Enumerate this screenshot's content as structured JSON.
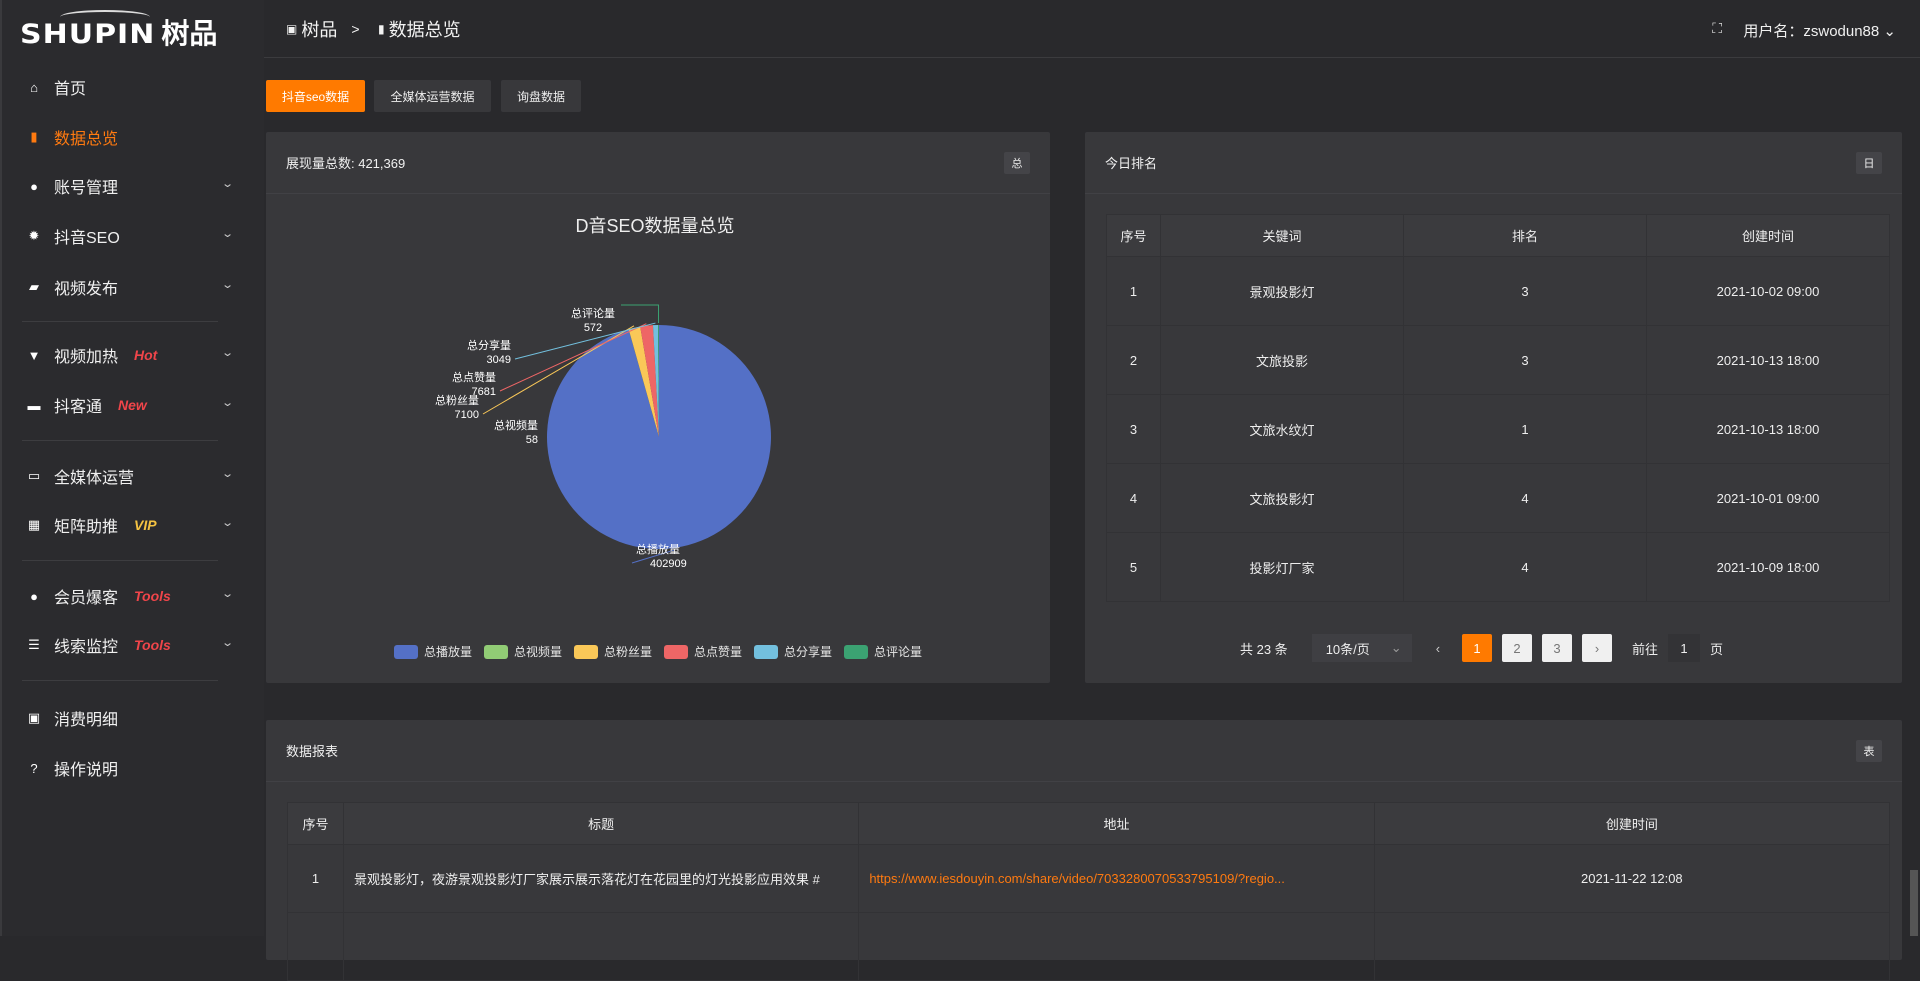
{
  "brand": {
    "logo_en": "SHUPIN",
    "logo_cn": "树品"
  },
  "sidebar": {
    "items": [
      {
        "label": "首页",
        "icon": "home-icon",
        "glyph": "⌂"
      },
      {
        "label": "数据总览",
        "icon": "bar-chart-icon",
        "glyph": "▮",
        "active": true
      },
      {
        "label": "账号管理",
        "icon": "user-icon",
        "glyph": "●",
        "chev": true
      },
      {
        "label": "抖音SEO",
        "icon": "gear-icon",
        "glyph": "✹",
        "chev": true
      },
      {
        "label": "视频发布",
        "icon": "video-camera-icon",
        "glyph": "▰",
        "chev": true
      },
      {
        "label": "视频加热",
        "icon": "flame-icon",
        "glyph": "▼",
        "badge": "Hot",
        "chev": true
      },
      {
        "label": "抖客通",
        "icon": "chat-icon",
        "glyph": "▬",
        "badge": "New",
        "chev": true
      },
      {
        "label": "全媒体运营",
        "icon": "monitor-icon",
        "glyph": "▭",
        "chev": true
      },
      {
        "label": "矩阵助推",
        "icon": "grid-icon",
        "glyph": "▦",
        "badge": "VIP",
        "chev": true
      },
      {
        "label": "会员爆客",
        "icon": "member-icon",
        "glyph": "●",
        "badge": "Tools",
        "chev": true
      },
      {
        "label": "线索监控",
        "icon": "sliders-icon",
        "glyph": "☰",
        "badge": "Tools",
        "chev": true
      },
      {
        "label": "消费明细",
        "icon": "wallet-icon",
        "glyph": "▣"
      },
      {
        "label": "操作说明",
        "icon": "help-icon",
        "glyph": "?"
      }
    ],
    "badge_colors": {
      "Hot": "#f0454a",
      "New": "#f0454a",
      "VIP": "#f5c342",
      "Tools": "#f0454a"
    }
  },
  "header": {
    "breadcrumb": [
      "树品",
      "数据总览"
    ],
    "separator": ">",
    "user_label": "用户名：zswodun88",
    "fullscreen_icon": "fullscreen-icon"
  },
  "tabs": [
    {
      "label": "抖音seo数据",
      "active": true
    },
    {
      "label": "全媒体运营数据"
    },
    {
      "label": "询盘数据"
    }
  ],
  "overview_card": {
    "title": "展现量总数: 421,369",
    "badge": "总"
  },
  "chart_data": {
    "type": "pie",
    "title": "D音SEO数据量总览",
    "legend_position": "bottom",
    "slices": [
      {
        "name": "总播放量",
        "value": 402909,
        "color": "#5470c6"
      },
      {
        "name": "总视频量",
        "value": 58,
        "color": "#91cc75"
      },
      {
        "name": "总粉丝量",
        "value": 7100,
        "color": "#fac858"
      },
      {
        "name": "总点赞量",
        "value": 7681,
        "color": "#ee6666"
      },
      {
        "name": "总分享量",
        "value": 3049,
        "color": "#73c0de"
      },
      {
        "name": "总评论量",
        "value": 572,
        "color": "#3ba272"
      }
    ]
  },
  "ranking_card": {
    "title": "今日排名",
    "badge": "日",
    "columns": [
      "序号",
      "关键词",
      "排名",
      "创建时间"
    ],
    "rows": [
      [
        "1",
        "景观投影灯",
        "3",
        "2021-10-02 09:00"
      ],
      [
        "2",
        "文旅投影",
        "3",
        "2021-10-13 18:00"
      ],
      [
        "3",
        "文旅水纹灯",
        "1",
        "2021-10-13 18:00"
      ],
      [
        "4",
        "文旅投影灯",
        "4",
        "2021-10-01 09:00"
      ],
      [
        "5",
        "投影灯厂家",
        "4",
        "2021-10-09 18:00"
      ]
    ],
    "pagination": {
      "total": "共 23 条",
      "page_size": "10条/页",
      "pages": [
        "1",
        "2",
        "3"
      ],
      "current": "1",
      "goto_label": "前往",
      "goto_value": "1",
      "page_suffix": "页"
    }
  },
  "report_card": {
    "title": "数据报表",
    "badge": "表",
    "columns": [
      "序号",
      "标题",
      "地址",
      "创建时间"
    ],
    "rows": [
      [
        "1",
        "景观投影灯，夜游景观投影灯厂家展示展示落花灯在花园里的灯光投影应用效果 #",
        "https://www.iesdouyin.com/share/video/7033280070533795109/?regio...",
        "2021-11-22 12:08"
      ]
    ]
  },
  "colors": {
    "accent": "#ff7a00"
  }
}
